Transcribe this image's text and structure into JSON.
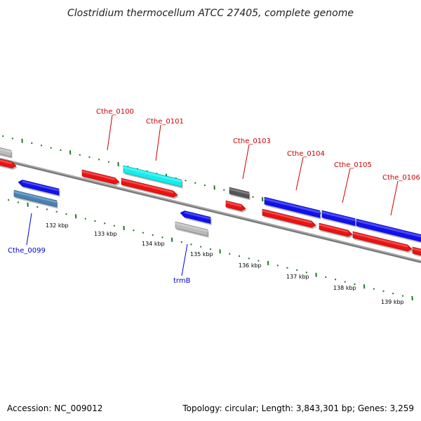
{
  "title": "Clostridium thermocellum ATCC 27405, complete genome",
  "footer": {
    "accession": "Accession: NC_009012",
    "summary": "Topology: circular; Length: 3,843,301 bp; Genes: 3,259"
  },
  "colors": {
    "backbone": "#7f7f7f",
    "tick": "#1f7a1f",
    "label_top": "#cc0000",
    "label_bottom": "#0000cc",
    "red": "#ee1111",
    "blue": "#1111ee",
    "cyan": "#11eeee",
    "steel": "#4682b4",
    "gray": "#bbbbbb",
    "dark_gray": "#555555"
  },
  "kbp_labels": [
    "132 kbp",
    "133 kbp",
    "134 kbp",
    "135 kbp",
    "136 kbp",
    "137 kbp",
    "138 kbp",
    "139 kbp"
  ],
  "gene_labels": {
    "top": [
      "Cthe_0100",
      "Cthe_0101",
      "Cthe_0103",
      "Cthe_0104",
      "Cthe_0105",
      "Cthe_0106"
    ],
    "bottom": [
      "Cthe_0099",
      "trmB"
    ]
  },
  "features": [
    {
      "name": "feature-gray-upper-left",
      "color": "gray",
      "direction": "none"
    },
    {
      "name": "feature-red-upper-left",
      "color": "red",
      "direction": "right"
    },
    {
      "name": "feature-blue-left",
      "color": "blue",
      "direction": "left"
    },
    {
      "name": "feature-steel-left",
      "color": "steel",
      "direction": "none"
    },
    {
      "name": "feature-red-cthe-0100",
      "color": "red",
      "direction": "right"
    },
    {
      "name": "feature-cyan-cthe-0101",
      "color": "cyan",
      "direction": "none"
    },
    {
      "name": "feature-red-cthe-0101",
      "color": "red",
      "direction": "right"
    },
    {
      "name": "feature-blue-trmb",
      "color": "blue",
      "direction": "left"
    },
    {
      "name": "feature-gray-trmb",
      "color": "gray",
      "direction": "none"
    },
    {
      "name": "feature-darkgray-cthe-0103",
      "color": "dark_gray",
      "direction": "none"
    },
    {
      "name": "feature-red-cthe-0103",
      "color": "red",
      "direction": "right"
    },
    {
      "name": "feature-blue-cthe-0104",
      "color": "blue",
      "direction": "none"
    },
    {
      "name": "feature-red-cthe-0104",
      "color": "red",
      "direction": "right"
    },
    {
      "name": "feature-blue-cthe-0105",
      "color": "blue",
      "direction": "none"
    },
    {
      "name": "feature-red-cthe-0105",
      "color": "red",
      "direction": "right"
    },
    {
      "name": "feature-blue-cthe-0106",
      "color": "blue",
      "direction": "none"
    },
    {
      "name": "feature-red-cthe-0106",
      "color": "red",
      "direction": "right"
    },
    {
      "name": "feature-red-far-right",
      "color": "red",
      "direction": "none"
    }
  ]
}
